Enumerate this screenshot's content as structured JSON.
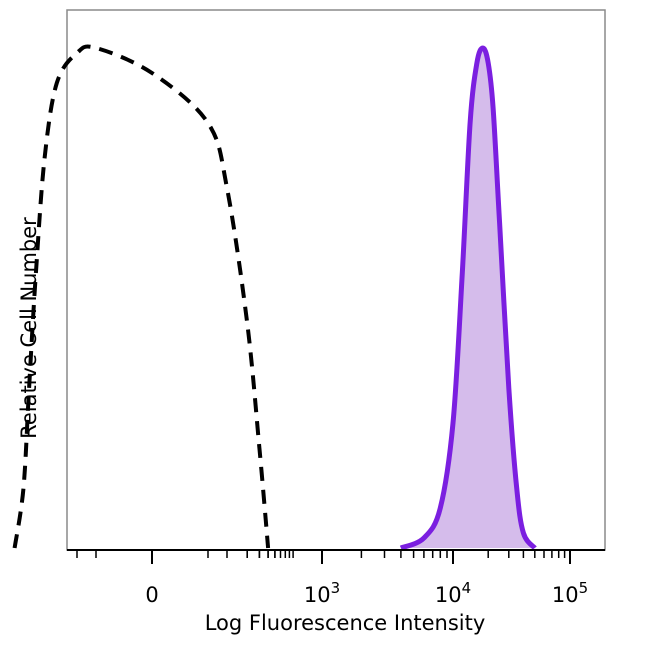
{
  "chart_data": {
    "type": "area",
    "xlabel": "Log Fluorescence Intensity",
    "ylabel": "Relative Cell Number",
    "x_scale": "biexponential",
    "x_ticks": [
      {
        "base": "0",
        "exp": ""
      },
      {
        "base": "10",
        "exp": "3"
      },
      {
        "base": "10",
        "exp": "4"
      },
      {
        "base": "10",
        "exp": "5"
      }
    ],
    "y_range": [
      0,
      1
    ],
    "grid": false,
    "series": [
      {
        "style": "dashed",
        "color": "#000000",
        "fill": "none",
        "x": [
          "-8e2",
          "-6e2",
          "-5e2",
          "-4e2",
          "-3e2",
          "-2e2",
          "-1e2",
          "-5e1",
          "0",
          "5e1",
          "1e2",
          "2e2",
          "3e2",
          "4e2"
        ],
        "y": [
          0.0,
          0.12,
          0.32,
          0.55,
          0.78,
          0.93,
          0.99,
          1.0,
          0.95,
          0.85,
          0.72,
          0.45,
          0.2,
          0.0
        ]
      },
      {
        "style": "solid",
        "color": "#7B1FE0",
        "fill": "#D5BCEB",
        "x": [
          "4000",
          "6000",
          "8000",
          "10000",
          "12000",
          "14000",
          "16000",
          "18000",
          "20000",
          "22000",
          "25000",
          "30000",
          "35000",
          "40000",
          "50000"
        ],
        "y": [
          0.0,
          0.02,
          0.08,
          0.25,
          0.55,
          0.85,
          0.97,
          1.0,
          0.97,
          0.88,
          0.65,
          0.32,
          0.12,
          0.03,
          0.0
        ]
      }
    ]
  }
}
